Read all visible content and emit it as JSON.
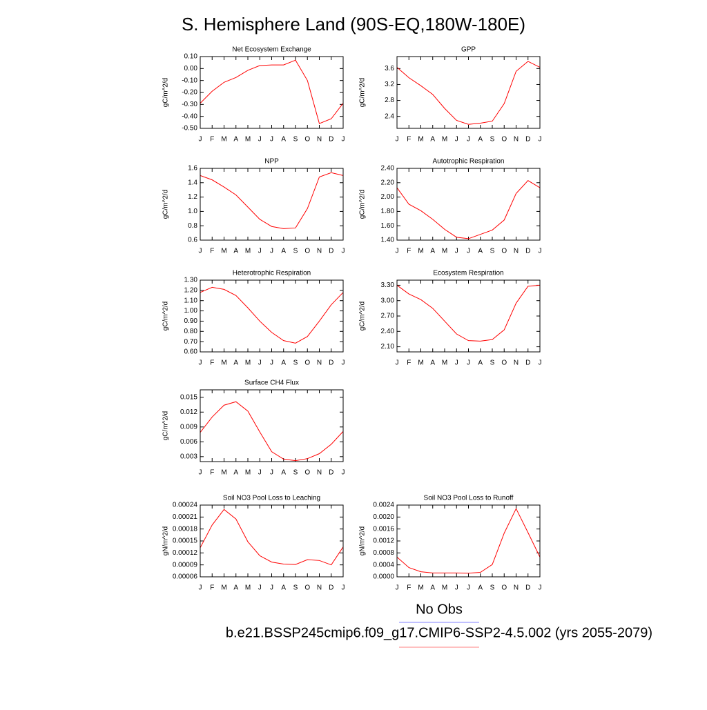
{
  "title": "S. Hemisphere Land (90S-EQ,180W-180E)",
  "legend": [
    {
      "label": "No Obs",
      "color": "#8080ff"
    },
    {
      "label": "b.e21.BSSP245cmip6.f09_g17.CMIP6-SSP2-4.5.002 (yrs 2055-2079)",
      "color": "#ff8080"
    }
  ],
  "chart_data": [
    {
      "type": "line",
      "title": "Net Ecosystem Exchange",
      "ylabel": "gC/m^2/d",
      "categories": [
        "J",
        "F",
        "M",
        "A",
        "M",
        "J",
        "J",
        "A",
        "S",
        "O",
        "N",
        "D",
        "J"
      ],
      "series": [
        {
          "color": "#ff0000",
          "values": [
            -0.29,
            -0.19,
            -0.115,
            -0.075,
            -0.015,
            0.025,
            0.03,
            0.03,
            0.07,
            -0.1,
            -0.46,
            -0.42,
            -0.29
          ]
        }
      ],
      "ylim": [
        -0.5,
        0.1
      ],
      "yticks": [
        {
          "value": -0.5,
          "label": "-0.50"
        },
        {
          "value": -0.4,
          "label": "-0.40"
        },
        {
          "value": -0.3,
          "label": "-0.30"
        },
        {
          "value": -0.2,
          "label": "-0.20"
        },
        {
          "value": -0.1,
          "label": "-0.10"
        },
        {
          "value": 0,
          "label": "0.00"
        },
        {
          "value": 0.1,
          "label": "0.10"
        }
      ]
    },
    {
      "type": "line",
      "title": "GPP",
      "ylabel": "gC/m^2/d",
      "categories": [
        "J",
        "F",
        "M",
        "A",
        "M",
        "J",
        "J",
        "A",
        "S",
        "O",
        "N",
        "D",
        "J"
      ],
      "series": [
        {
          "color": "#ff0000",
          "values": [
            3.63,
            3.37,
            3.17,
            2.95,
            2.6,
            2.3,
            2.2,
            2.23,
            2.28,
            2.72,
            3.53,
            3.78,
            3.63
          ]
        }
      ],
      "ylim": [
        2.1,
        3.9
      ],
      "yticks": [
        2.4,
        2.8,
        3.2,
        3.6
      ]
    },
    {
      "type": "line",
      "title": "NPP",
      "ylabel": "gC/m^2/d",
      "categories": [
        "J",
        "F",
        "M",
        "A",
        "M",
        "J",
        "J",
        "A",
        "S",
        "O",
        "N",
        "D",
        "J"
      ],
      "series": [
        {
          "color": "#ff0000",
          "values": [
            1.5,
            1.44,
            1.34,
            1.23,
            1.06,
            0.89,
            0.79,
            0.76,
            0.77,
            1.04,
            1.48,
            1.54,
            1.5
          ]
        }
      ],
      "ylim": [
        0.6,
        1.6
      ],
      "yticks": [
        0.6,
        0.8,
        {
          "value": 1,
          "label": "1.0"
        },
        1.2,
        1.4,
        1.6
      ]
    },
    {
      "type": "line",
      "title": "Autotrophic Respiration",
      "ylabel": "gC/m^2/d",
      "categories": [
        "J",
        "F",
        "M",
        "A",
        "M",
        "J",
        "J",
        "A",
        "S",
        "O",
        "N",
        "D",
        "J"
      ],
      "series": [
        {
          "color": "#ff0000",
          "values": [
            2.13,
            1.9,
            1.81,
            1.69,
            1.55,
            1.44,
            1.42,
            1.48,
            1.54,
            1.68,
            2.05,
            2.23,
            2.13
          ]
        }
      ],
      "ylim": [
        1.4,
        2.4
      ],
      "yticks": [
        {
          "value": 1.4,
          "label": "1.40"
        },
        {
          "value": 1.6,
          "label": "1.60"
        },
        {
          "value": 1.8,
          "label": "1.80"
        },
        {
          "value": 2,
          "label": "2.00"
        },
        {
          "value": 2.2,
          "label": "2.20"
        },
        {
          "value": 2.4,
          "label": "2.40"
        }
      ]
    },
    {
      "type": "line",
      "title": "Heterotrophic Respiration",
      "ylabel": "gC/m^2/d",
      "categories": [
        "J",
        "F",
        "M",
        "A",
        "M",
        "J",
        "J",
        "A",
        "S",
        "O",
        "N",
        "D",
        "J"
      ],
      "series": [
        {
          "color": "#ff0000",
          "values": [
            1.18,
            1.23,
            1.21,
            1.15,
            1.03,
            0.9,
            0.79,
            0.71,
            0.685,
            0.75,
            0.9,
            1.06,
            1.18
          ]
        }
      ],
      "ylim": [
        0.6,
        1.3
      ],
      "yticks": [
        {
          "value": 0.6,
          "label": "0.60"
        },
        {
          "value": 0.7,
          "label": "0.70"
        },
        {
          "value": 0.8,
          "label": "0.80"
        },
        {
          "value": 0.9,
          "label": "0.90"
        },
        {
          "value": 1,
          "label": "1.00"
        },
        {
          "value": 1.1,
          "label": "1.10"
        },
        {
          "value": 1.2,
          "label": "1.20"
        },
        {
          "value": 1.3,
          "label": "1.30"
        }
      ]
    },
    {
      "type": "line",
      "title": "Ecosystem Respiration",
      "ylabel": "gC/m^2/d",
      "categories": [
        "J",
        "F",
        "M",
        "A",
        "M",
        "J",
        "J",
        "A",
        "S",
        "O",
        "N",
        "D",
        "J"
      ],
      "series": [
        {
          "color": "#ff0000",
          "values": [
            3.3,
            3.13,
            3.02,
            2.85,
            2.6,
            2.35,
            2.22,
            2.21,
            2.24,
            2.43,
            2.95,
            3.28,
            3.3
          ]
        }
      ],
      "ylim": [
        2.0,
        3.4
      ],
      "yticks": [
        {
          "value": 2.1,
          "label": "2.10"
        },
        {
          "value": 2.4,
          "label": "2.40"
        },
        {
          "value": 2.7,
          "label": "2.70"
        },
        {
          "value": 3,
          "label": "3.00"
        },
        {
          "value": 3.3,
          "label": "3.30"
        }
      ]
    },
    {
      "type": "line",
      "title": "Surface CH4 Flux",
      "ylabel": "gC/m^2/d",
      "categories": [
        "J",
        "F",
        "M",
        "A",
        "M",
        "J",
        "J",
        "A",
        "S",
        "O",
        "N",
        "D",
        "J"
      ],
      "series": [
        {
          "color": "#ff0000",
          "values": [
            0.0079,
            0.011,
            0.0134,
            0.0141,
            0.0122,
            0.008,
            0.004,
            0.0025,
            0.0022,
            0.0026,
            0.0036,
            0.0055,
            0.0081
          ]
        }
      ],
      "ylim": [
        0.002,
        0.0165
      ],
      "yticks": [
        0.003,
        0.006,
        0.009,
        0.012,
        0.015
      ]
    },
    {
      "type": "line",
      "title": "Soil NO3 Pool Loss to Leaching",
      "ylabel": "gN/m^2/d",
      "categories": [
        "J",
        "F",
        "M",
        "A",
        "M",
        "J",
        "J",
        "A",
        "S",
        "O",
        "N",
        "D",
        "J"
      ],
      "series": [
        {
          "color": "#ff0000",
          "values": [
            0.000133,
            0.00019,
            0.000229,
            0.000205,
            0.000148,
            0.000113,
            9.7e-05,
            9.2e-05,
            9.1e-05,
            0.000103,
            0.000101,
            9e-05,
            0.000135
          ]
        }
      ],
      "ylim": [
        6e-05,
        0.00024
      ],
      "yticks": [
        6e-05,
        9e-05,
        0.00012,
        0.00015,
        0.00018,
        0.00021,
        0.00024
      ]
    },
    {
      "type": "line",
      "title": "Soil NO3 Pool Loss to Runoff",
      "ylabel": "gN/m^2/d",
      "categories": [
        "J",
        "F",
        "M",
        "A",
        "M",
        "J",
        "J",
        "A",
        "S",
        "O",
        "N",
        "D",
        "J"
      ],
      "series": [
        {
          "color": "#ff0000",
          "values": [
            0.00066,
            0.00031,
            0.00017,
            0.00013,
            0.00013,
            0.00013,
            0.00012,
            0.00015,
            0.00041,
            0.00146,
            0.00228,
            0.00148,
            0.00066
          ]
        }
      ],
      "ylim": [
        0,
        0.0024
      ],
      "yticks": [
        {
          "value": 0,
          "label": "0.0000"
        },
        0.0004,
        0.0008,
        0.0012,
        0.0016,
        {
          "value": 0.002,
          "label": "0.0020"
        },
        0.0024
      ]
    }
  ]
}
